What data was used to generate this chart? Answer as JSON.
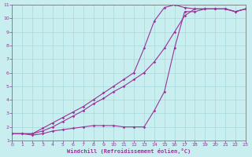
{
  "background_color": "#c8eef0",
  "grid_color": "#a8d8da",
  "line_color": "#993399",
  "xlim": [
    0,
    23
  ],
  "ylim": [
    1,
    11
  ],
  "xticks": [
    0,
    1,
    2,
    3,
    4,
    5,
    6,
    7,
    8,
    9,
    10,
    11,
    12,
    13,
    14,
    15,
    16,
    17,
    18,
    19,
    20,
    21,
    22,
    23
  ],
  "yticks": [
    1,
    2,
    3,
    4,
    5,
    6,
    7,
    8,
    9,
    10,
    11
  ],
  "xlabel": "Windchill (Refroidissement éolien,°C)",
  "series": [
    {
      "x": [
        0,
        1,
        2,
        3,
        4,
        5,
        6,
        7,
        8,
        9,
        10,
        11,
        12,
        13,
        14,
        15,
        16,
        17,
        18,
        19,
        20,
        21,
        22,
        23
      ],
      "y": [
        1.5,
        1.5,
        1.5,
        1.7,
        2.0,
        2.4,
        2.8,
        3.2,
        3.7,
        4.1,
        4.6,
        5.0,
        5.5,
        6.0,
        6.8,
        7.8,
        9.0,
        10.2,
        10.7,
        10.7,
        10.7,
        10.7,
        10.5,
        10.7
      ]
    },
    {
      "x": [
        0,
        1,
        2,
        3,
        4,
        5,
        6,
        7,
        8,
        9,
        10,
        11,
        12,
        13,
        14,
        15,
        16,
        17,
        18,
        19,
        20,
        21,
        22,
        23
      ],
      "y": [
        1.5,
        1.5,
        1.5,
        1.9,
        2.3,
        2.7,
        3.1,
        3.5,
        4.0,
        4.5,
        5.0,
        5.5,
        6.0,
        7.8,
        9.8,
        10.8,
        11.0,
        10.8,
        10.7,
        10.7,
        10.7,
        10.7,
        10.5,
        10.7
      ]
    },
    {
      "x": [
        0,
        1,
        2,
        3,
        4,
        5,
        6,
        7,
        8,
        9,
        10,
        11,
        12,
        13,
        14,
        15,
        16,
        17,
        18,
        19,
        20,
        21,
        22,
        23
      ],
      "y": [
        1.5,
        1.5,
        1.4,
        1.5,
        1.7,
        1.8,
        1.9,
        2.0,
        2.1,
        2.1,
        2.1,
        2.0,
        2.0,
        2.0,
        3.2,
        4.6,
        7.8,
        10.5,
        10.5,
        10.7,
        10.7,
        10.7,
        10.5,
        10.7
      ]
    }
  ]
}
